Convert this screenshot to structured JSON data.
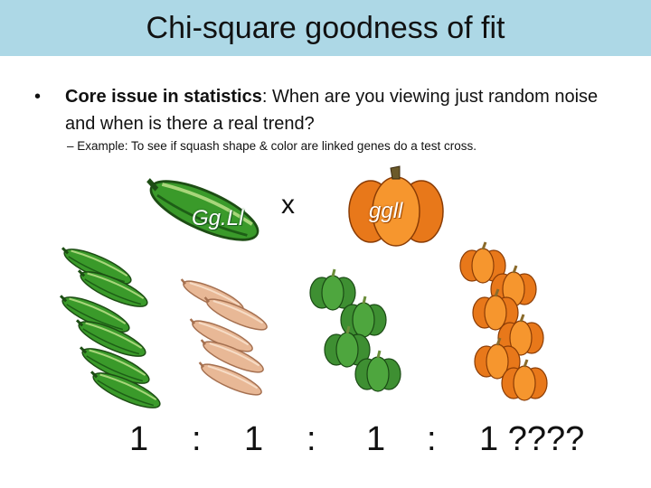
{
  "slide": {
    "title": "Chi-square goodness of fit",
    "bullet_symbol": "•",
    "bullet1_bold": "Core issue in statistics",
    "bullet1_rest": ":  When are you viewing just random noise and when is there a real trend?",
    "sub_bullet": "– Example: To see if squash shape & color are linked genes do a test cross."
  },
  "cross": {
    "parent1_label": "Gg.Ll",
    "cross_symbol": "x",
    "parent2_label": "ggll"
  },
  "ratio": {
    "r1": "1",
    "sep1": ":",
    "r2": "1",
    "sep2": ":",
    "r3": "1",
    "sep3": ":",
    "r4": "1 ????"
  },
  "colors": {
    "title_bg": "#add8e6",
    "zucchini_green": "#3a9a2a",
    "tan_squash": "#e8b896",
    "green_pumpkin": "#3e8f32",
    "orange_pumpkin": "#f08a1e"
  }
}
